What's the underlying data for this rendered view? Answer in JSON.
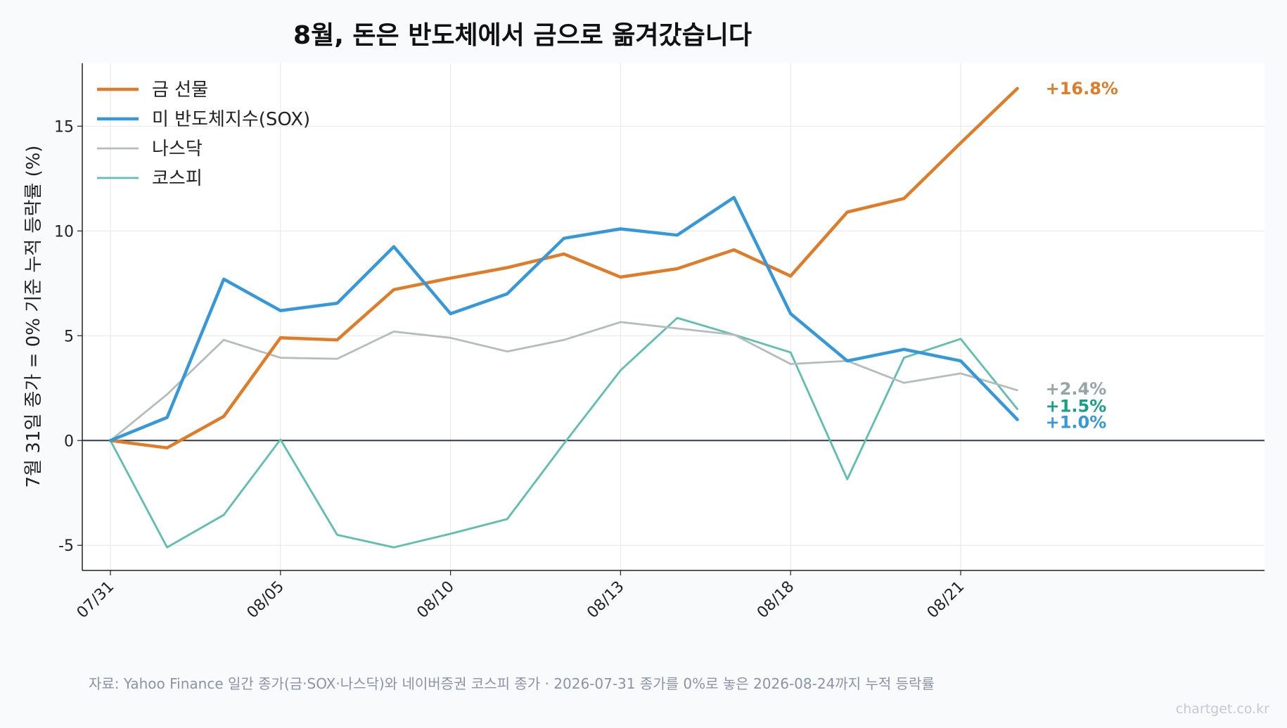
{
  "chart_data": {
    "type": "line",
    "title": "8월, 돈은 반도체에서 금으로 옮겨갔습니다",
    "ylabel": "7월 31일 종가 = 0% 기준 누적 등락률 (%)",
    "xlabel": "",
    "ylim": [
      -6.2,
      18.0
    ],
    "yticks": [
      -5,
      0,
      5,
      10,
      15
    ],
    "ytick_labels": [
      "-5",
      "0",
      "5",
      "10",
      "15"
    ],
    "x_dates": [
      "07/31",
      "08/03",
      "08/04",
      "08/05",
      "08/06",
      "08/07",
      "08/10",
      "08/11",
      "08/12",
      "08/13",
      "08/14",
      "08/17",
      "08/18",
      "08/19",
      "08/20",
      "08/21",
      "08/24"
    ],
    "xticks": [
      "07/31",
      "08/05",
      "08/10",
      "08/13",
      "08/18",
      "08/21"
    ],
    "grid": true,
    "legend_position": "top-left",
    "series": [
      {
        "name": "금 선물",
        "color": "#e07b28",
        "width": "thick",
        "values": [
          0,
          -0.35,
          1.15,
          4.9,
          4.8,
          7.2,
          7.75,
          8.25,
          8.9,
          7.8,
          8.2,
          9.1,
          7.85,
          10.9,
          11.55,
          14.2,
          16.8
        ],
        "end_label": "+16.8%"
      },
      {
        "name": "미 반도체지수(SOX)",
        "color": "#3498db",
        "width": "thick",
        "values": [
          0,
          1.1,
          7.7,
          6.2,
          6.55,
          9.25,
          6.05,
          7.0,
          9.65,
          10.1,
          9.8,
          11.6,
          6.05,
          3.8,
          4.35,
          3.8,
          1.0
        ],
        "end_label": "+1.0%"
      },
      {
        "name": "나스닥",
        "color": "#b5bcbc",
        "width": "thin",
        "values": [
          0,
          2.2,
          4.8,
          3.95,
          3.9,
          5.2,
          4.9,
          4.25,
          4.8,
          5.65,
          5.35,
          5.05,
          3.65,
          3.8,
          2.75,
          3.2,
          2.4
        ],
        "end_label": "+2.4%",
        "label_color": "#95a5a6"
      },
      {
        "name": "코스피",
        "color": "#5dbfad",
        "width": "thin",
        "values": [
          0,
          -5.1,
          -3.55,
          0.05,
          -4.5,
          -5.1,
          -4.45,
          -3.75,
          -0.15,
          3.35,
          5.85,
          5.05,
          4.2,
          -1.85,
          3.95,
          4.85,
          1.5
        ],
        "end_label": "+1.5%",
        "label_color": "#16a085"
      }
    ],
    "source": "자료: Yahoo Finance 일간 종가(금·SOX·나스닥)와 네이버증권 코스피 종가 · 2026-07-31 종가를 0%로 놓은 2026-08-24까지 누적 등락률",
    "credit": "chartget.co.kr"
  }
}
